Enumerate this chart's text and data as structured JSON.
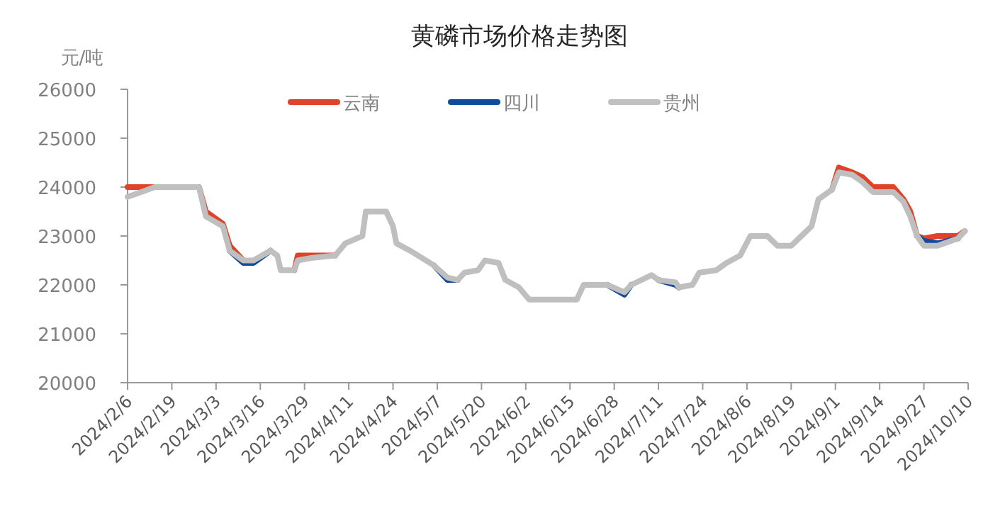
{
  "chart_data": {
    "type": "line",
    "title": "黄磷市场价格走势图",
    "ylabel": "元/吨",
    "x": [
      "2024-02-06",
      "2024-02-10",
      "2024-02-14",
      "2024-02-27",
      "2024-02-29",
      "2024-03-05",
      "2024-03-07",
      "2024-03-11",
      "2024-03-14",
      "2024-03-19",
      "2024-03-21",
      "2024-03-22",
      "2024-03-26",
      "2024-03-27",
      "2024-03-31",
      "2024-04-07",
      "2024-04-10",
      "2024-04-15",
      "2024-04-16",
      "2024-04-22",
      "2024-04-24",
      "2024-04-25",
      "2024-04-29",
      "2024-05-06",
      "2024-05-10",
      "2024-05-13",
      "2024-05-15",
      "2024-05-19",
      "2024-05-21",
      "2024-05-25",
      "2024-05-27",
      "2024-05-31",
      "2024-06-03",
      "2024-06-17",
      "2024-06-19",
      "2024-06-26",
      "2024-07-01",
      "2024-07-03",
      "2024-07-09",
      "2024-07-11",
      "2024-07-16",
      "2024-07-17",
      "2024-07-21",
      "2024-07-23",
      "2024-07-28",
      "2024-07-31",
      "2024-08-04",
      "2024-08-07",
      "2024-08-12",
      "2024-08-15",
      "2024-08-19",
      "2024-08-22",
      "2024-08-25",
      "2024-08-27",
      "2024-08-31",
      "2024-09-02",
      "2024-09-06",
      "2024-09-09",
      "2024-09-12",
      "2024-09-18",
      "2024-09-21",
      "2024-09-23",
      "2024-09-25",
      "2024-09-27",
      "2024-10-01",
      "2024-10-07",
      "2024-10-09"
    ],
    "series": [
      {
        "name": "云南",
        "color": "#e0432b",
        "values": [
          24000,
          24000,
          24000,
          24000,
          23500,
          23250,
          22800,
          22500,
          null,
          null,
          null,
          null,
          22300,
          22600,
          22600,
          22600,
          null,
          null,
          null,
          null,
          null,
          null,
          null,
          null,
          null,
          null,
          null,
          null,
          null,
          null,
          null,
          null,
          null,
          null,
          null,
          null,
          null,
          null,
          null,
          null,
          null,
          null,
          null,
          null,
          null,
          null,
          null,
          null,
          null,
          null,
          null,
          null,
          null,
          null,
          23950,
          24400,
          24300,
          24200,
          24000,
          24000,
          23750,
          23500,
          23000,
          22950,
          23000,
          23000,
          23100
        ]
      },
      {
        "name": "四川",
        "color": "#0f4c9b",
        "values": [
          null,
          null,
          null,
          null,
          null,
          null,
          22700,
          22450,
          22450,
          22700,
          null,
          null,
          null,
          null,
          null,
          null,
          null,
          null,
          null,
          null,
          null,
          null,
          null,
          22400,
          22100,
          22100,
          null,
          null,
          null,
          null,
          null,
          null,
          null,
          null,
          null,
          22000,
          21800,
          22000,
          null,
          22100,
          22000,
          21950,
          null,
          null,
          null,
          null,
          null,
          null,
          null,
          null,
          null,
          null,
          null,
          null,
          null,
          null,
          null,
          null,
          null,
          null,
          null,
          null,
          23000,
          22900,
          22850,
          22950,
          null
        ]
      },
      {
        "name": "贵州",
        "color": "#bfbfbf",
        "values": [
          23800,
          23900,
          24000,
          24000,
          23400,
          23200,
          22700,
          22500,
          22500,
          22700,
          22600,
          22300,
          22300,
          22500,
          22550,
          22600,
          22850,
          23000,
          23500,
          23500,
          23200,
          22850,
          22700,
          22400,
          22150,
          22100,
          22250,
          22300,
          22500,
          22450,
          22100,
          21950,
          21700,
          21700,
          22000,
          22000,
          21850,
          22000,
          22200,
          22100,
          22050,
          21950,
          22000,
          22250,
          22300,
          22450,
          22600,
          23000,
          23000,
          22800,
          22800,
          23000,
          23200,
          23750,
          23950,
          24300,
          24250,
          24100,
          23900,
          23900,
          23700,
          23400,
          23000,
          22800,
          22800,
          22950,
          23100
        ]
      }
    ],
    "xlim": [
      "2024-02-06",
      "2024-10-10"
    ],
    "xticks": [
      {
        "value": "2024-02-06",
        "label": "2024/2/6"
      },
      {
        "value": "2024-02-19",
        "label": "2024/2/19"
      },
      {
        "value": "2024-03-03",
        "label": "2024/3/3"
      },
      {
        "value": "2024-03-16",
        "label": "2024/3/16"
      },
      {
        "value": "2024-03-29",
        "label": "2024/3/29"
      },
      {
        "value": "2024-04-11",
        "label": "2024/4/11"
      },
      {
        "value": "2024-04-24",
        "label": "2024/4/24"
      },
      {
        "value": "2024-05-07",
        "label": "2024/5/7"
      },
      {
        "value": "2024-05-20",
        "label": "2024/5/20"
      },
      {
        "value": "2024-06-02",
        "label": "2024/6/2"
      },
      {
        "value": "2024-06-15",
        "label": "2024/6/15"
      },
      {
        "value": "2024-06-28",
        "label": "2024/6/28"
      },
      {
        "value": "2024-07-11",
        "label": "2024/7/11"
      },
      {
        "value": "2024-07-24",
        "label": "2024/7/24"
      },
      {
        "value": "2024-08-06",
        "label": "2024/8/6"
      },
      {
        "value": "2024-08-19",
        "label": "2024/8/19"
      },
      {
        "value": "2024-09-01",
        "label": "2024/9/1"
      },
      {
        "value": "2024-09-14",
        "label": "2024/9/14"
      },
      {
        "value": "2024-09-27",
        "label": "2024/9/27"
      },
      {
        "value": "2024-10-10",
        "label": "2024/10/10"
      }
    ],
    "ylim": [
      20000,
      26000
    ],
    "yticks": [
      20000,
      21000,
      22000,
      23000,
      24000,
      25000,
      26000
    ],
    "grid": false,
    "legend": "top",
    "marker": "none",
    "line_style": "solid"
  }
}
